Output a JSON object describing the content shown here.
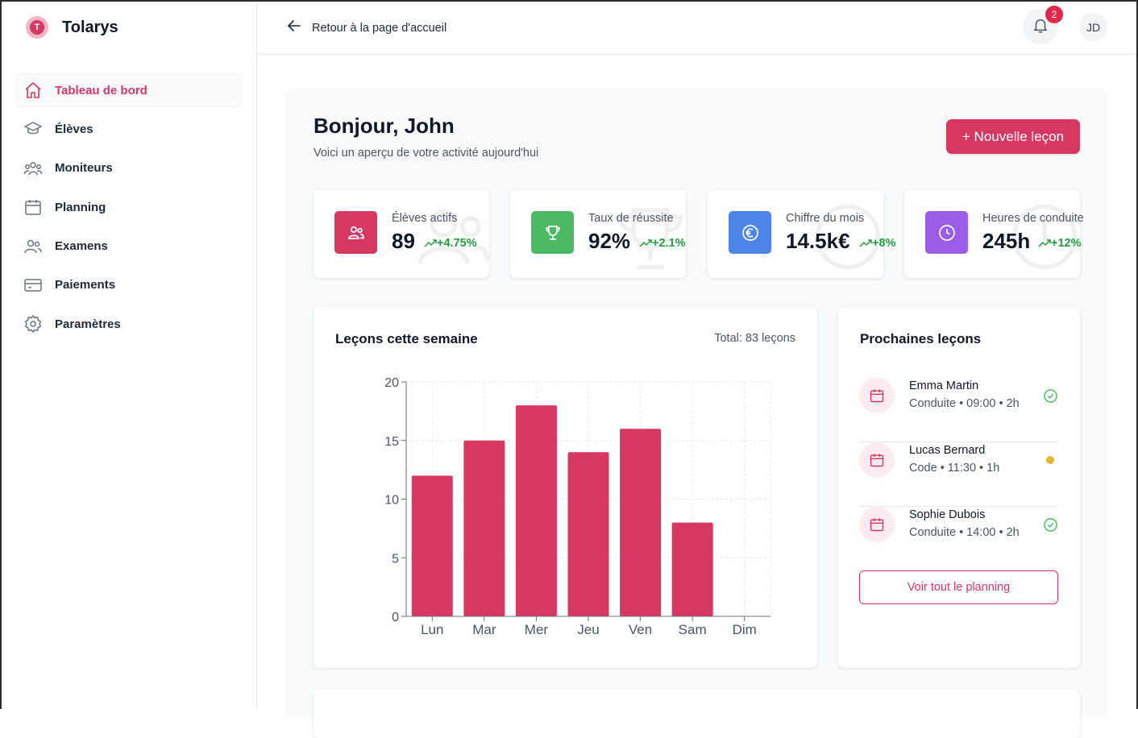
{
  "app": {
    "name": "Tolarys",
    "logo_letter": "T"
  },
  "sidebar": {
    "items": [
      {
        "label": "Tableau de bord",
        "icon": "home-icon",
        "active": true
      },
      {
        "label": "Élèves",
        "icon": "graduation-cap-icon"
      },
      {
        "label": "Moniteurs",
        "icon": "users-group-icon"
      },
      {
        "label": "Planning",
        "icon": "calendar-icon"
      },
      {
        "label": "Examens",
        "icon": "users-icon"
      },
      {
        "label": "Paiements",
        "icon": "credit-card-icon"
      },
      {
        "label": "Paramètres",
        "icon": "gear-icon"
      }
    ]
  },
  "topbar": {
    "back_label": "Retour à la page d'accueil",
    "notifications_count": "2",
    "avatar_initials": "JD"
  },
  "header": {
    "greeting": "Bonjour, John",
    "subtitle": "Voici un aperçu de votre activité aujourd'hui",
    "new_lesson_label": "+ Nouvelle leçon"
  },
  "stats": [
    {
      "label": "Élèves actifs",
      "value": "89",
      "trend": "+4.75%",
      "icon": "users-icon",
      "color": "#d63862"
    },
    {
      "label": "Taux de réussite",
      "value": "92%",
      "trend": "+2.1%",
      "icon": "trophy-icon",
      "color": "#4cb963"
    },
    {
      "label": "Chiffre du mois",
      "value": "14.5k€",
      "trend": "+8%",
      "icon": "euro-icon",
      "color": "#4c84e8"
    },
    {
      "label": "Heures de conduite",
      "value": "245h",
      "trend": "+12%",
      "icon": "clock-icon",
      "color": "#9b5de5"
    }
  ],
  "lessons_chart": {
    "title": "Leçons cette semaine",
    "total": "Total: 83 leçons"
  },
  "chart_data": {
    "type": "bar",
    "categories": [
      "Lun",
      "Mar",
      "Mer",
      "Jeu",
      "Ven",
      "Sam",
      "Dim"
    ],
    "values": [
      12,
      15,
      18,
      14,
      16,
      8,
      0
    ],
    "title": "Leçons cette semaine",
    "xlabel": "",
    "ylabel": "",
    "ylim": [
      0,
      20
    ],
    "yticks": [
      0,
      5,
      10,
      15,
      20
    ],
    "grid": true,
    "bar_color": "#d63862"
  },
  "upcoming": {
    "title": "Prochaines leçons",
    "lessons": [
      {
        "name": "Emma Martin",
        "details": "Conduite • 09:00 • 2h",
        "status": "confirmed"
      },
      {
        "name": "Lucas Bernard",
        "details": "Code • 11:30 • 1h",
        "status": "pending"
      },
      {
        "name": "Sophie Dubois",
        "details": "Conduite • 14:00 • 2h",
        "status": "confirmed"
      }
    ],
    "view_all_label": "Voir tout le planning"
  },
  "colors": {
    "accent": "#d63862",
    "trend_up": "#22a041",
    "pending": "#e5b52e",
    "confirmed": "#4cb963"
  }
}
